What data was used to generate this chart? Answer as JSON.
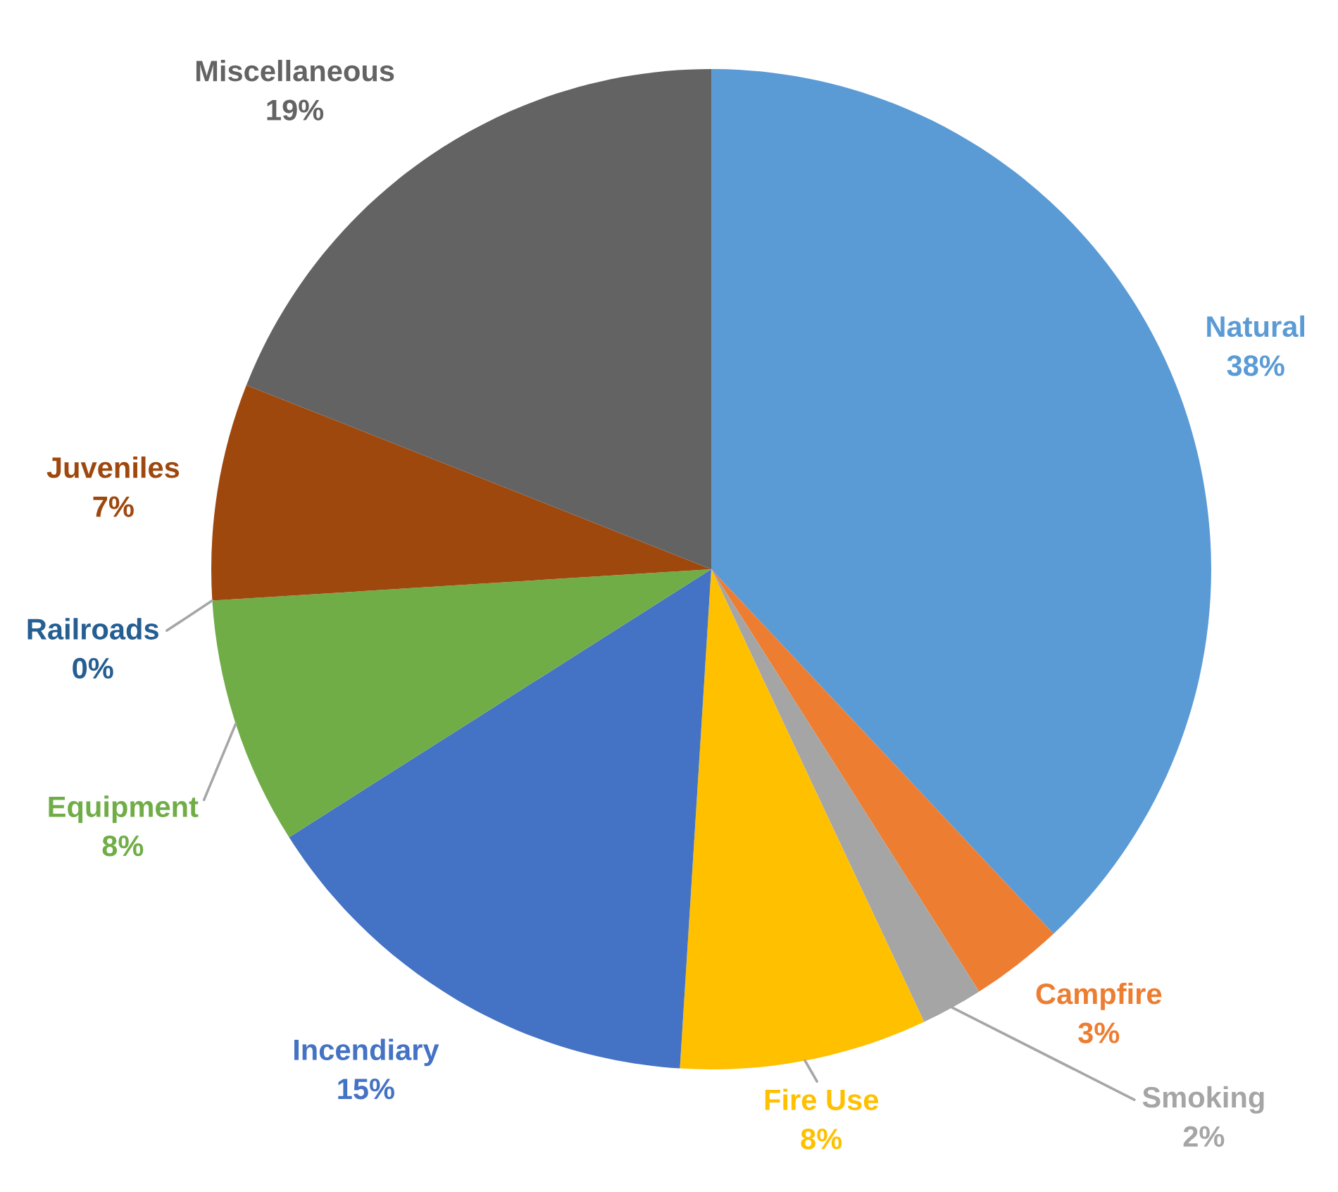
{
  "chart_data": {
    "type": "pie",
    "categories": [
      "Natural",
      "Campfire",
      "Smoking",
      "Fire Use",
      "Incendiary",
      "Equipment",
      "Railroads",
      "Juveniles",
      "Miscellaneous"
    ],
    "values": [
      38,
      3,
      2,
      8,
      15,
      8,
      0,
      7,
      19
    ],
    "value_labels": [
      "38%",
      "3%",
      "2%",
      "8%",
      "15%",
      "8%",
      "0%",
      "7%",
      "19%"
    ],
    "colors": [
      "#5b9bd5",
      "#ed7d31",
      "#a5a5a5",
      "#ffc000",
      "#4472c4",
      "#70ad47",
      "#255e91",
      "#9e480e",
      "#636363"
    ]
  }
}
